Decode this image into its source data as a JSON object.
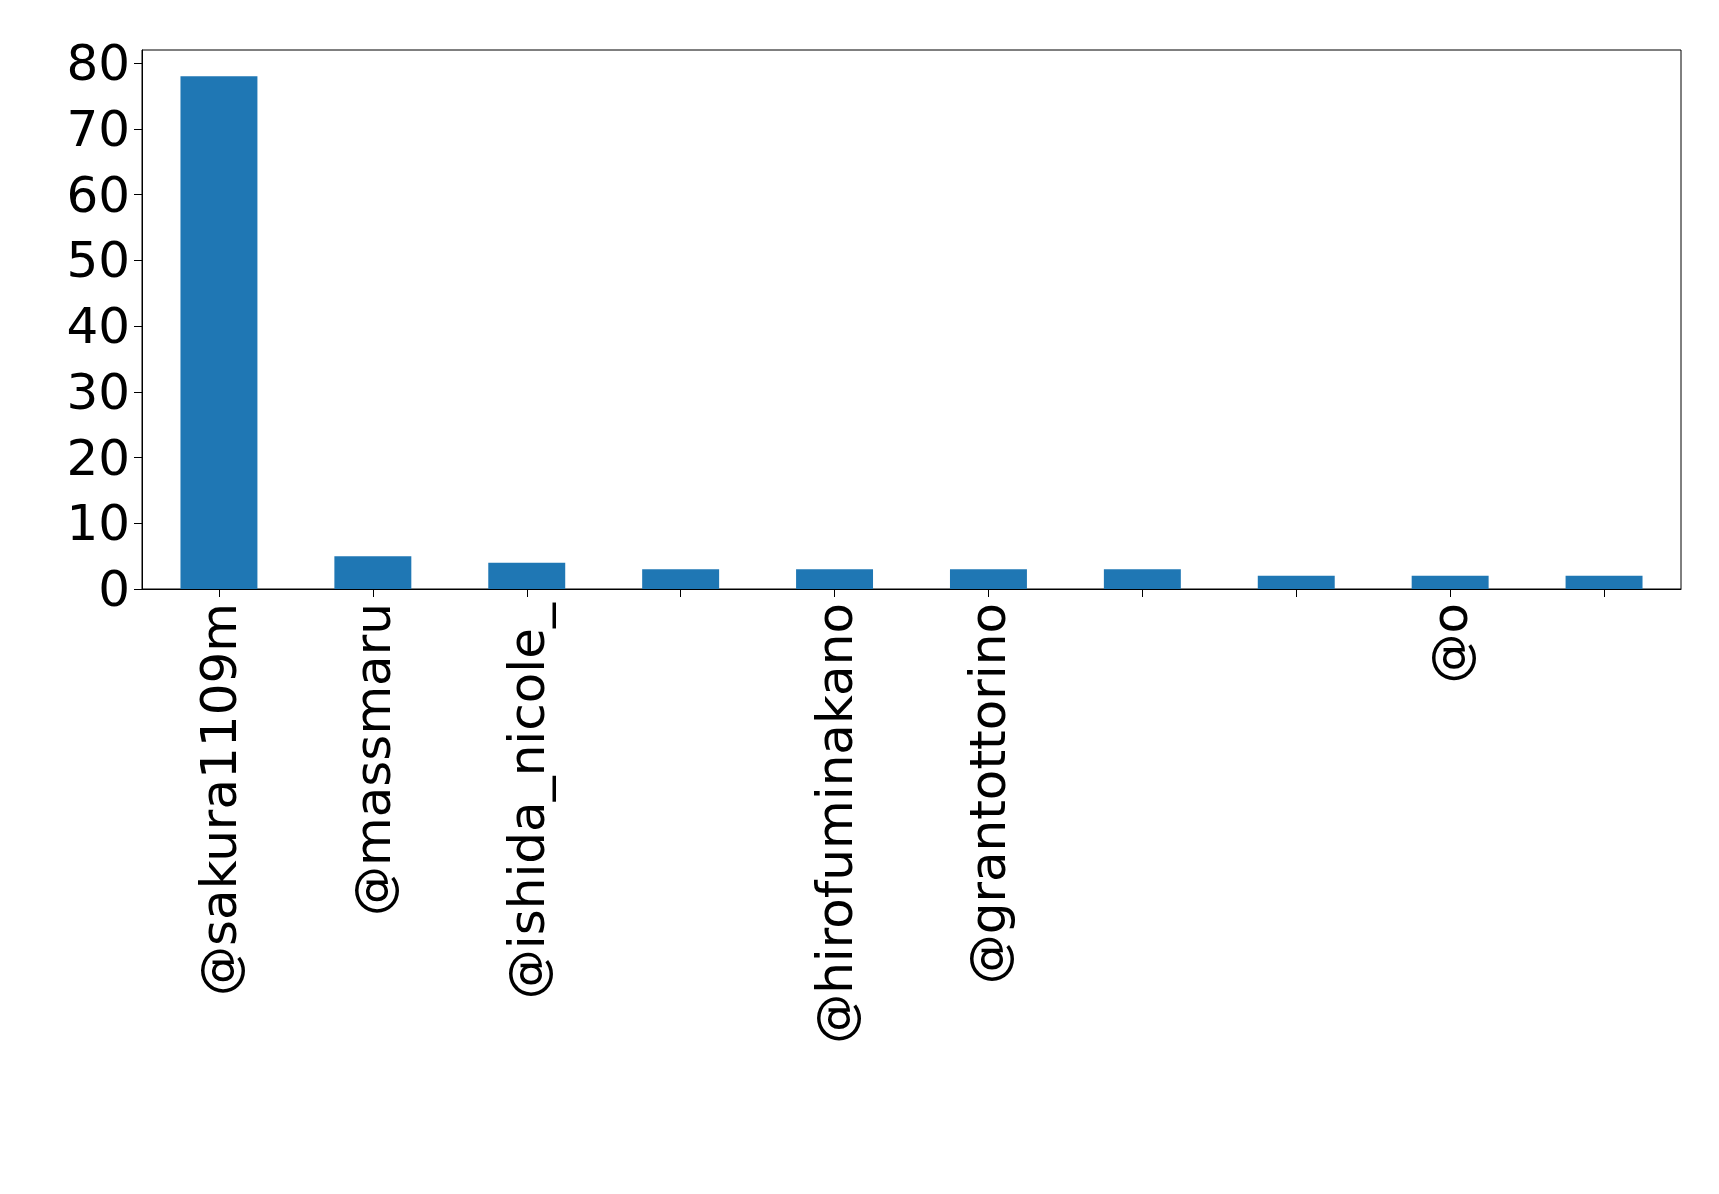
{
  "chart_data": {
    "type": "bar",
    "categories": [
      "@sakura1109m",
      "@massmaru",
      "@ishida_nicole_",
      null,
      "@hirofuminakano",
      "@grantottorino",
      null,
      null,
      "@o",
      null
    ],
    "values": [
      78,
      5,
      4,
      3,
      3,
      3,
      3,
      2,
      2,
      2
    ],
    "color": "#1f77b4",
    "ylim": [
      0,
      82
    ],
    "yticks": [
      0,
      10,
      20,
      30,
      40,
      50,
      60,
      70,
      80
    ],
    "grid": false
  }
}
